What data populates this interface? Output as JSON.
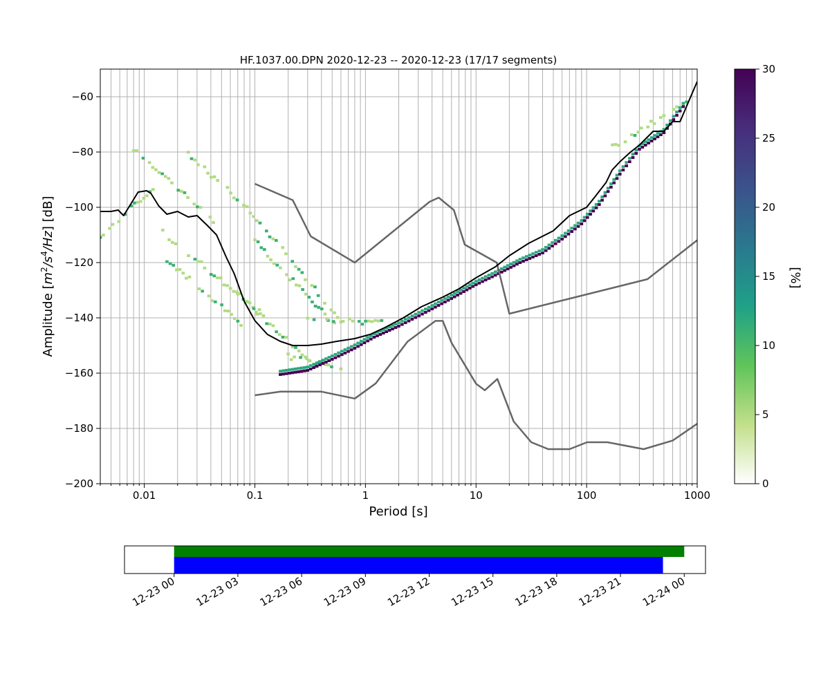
{
  "title": "HF.1037.00.DPN   2020-12-23 -- 2020-12-23  (17/17 segments)",
  "chart_data": [
    {
      "type": "heatmap",
      "title": "HF.1037.00.DPN   2020-12-23 -- 2020-12-23  (17/17 segments)",
      "xlabel": "Period [s]",
      "ylabel": "Amplitude [m²/s⁴/Hz] [dB]",
      "xscale": "log",
      "xlim": [
        0.004,
        1000
      ],
      "ylim": [
        -200,
        -50
      ],
      "grid": true,
      "xticks": [
        0.01,
        0.1,
        1,
        10,
        100,
        1000
      ],
      "xtick_labels": [
        "0.01",
        "0.1",
        "1",
        "10",
        "100",
        "1000"
      ],
      "yticks": [
        -200,
        -180,
        -160,
        -140,
        -120,
        -100,
        -80,
        -60
      ],
      "ytick_labels": [
        "−200",
        "−180",
        "−160",
        "−140",
        "−120",
        "−100",
        "−80",
        "−60"
      ],
      "colorbar": {
        "label": "[%]",
        "range": [
          0,
          30
        ],
        "ticks": [
          0,
          5,
          10,
          15,
          20,
          25,
          30
        ],
        "tick_labels": [
          "0",
          "5",
          "10",
          "15",
          "20",
          "25",
          "30"
        ],
        "colormap": "viridis_r",
        "colors": [
          "#ffffff",
          "#c2df8a",
          "#5fc45a",
          "#1fa187",
          "#2a788e",
          "#3b528b",
          "#472d7b",
          "#440154"
        ]
      },
      "mean_curve": {
        "color": "#000000",
        "x": [
          0.004,
          0.005,
          0.0058,
          0.0065,
          0.0075,
          0.0088,
          0.0105,
          0.0115,
          0.0135,
          0.016,
          0.02,
          0.025,
          0.03,
          0.037,
          0.045,
          0.055,
          0.065,
          0.08,
          0.1,
          0.13,
          0.17,
          0.22,
          0.3,
          0.4,
          0.55,
          0.8,
          1.1,
          1.5,
          2.2,
          3.2,
          5,
          7,
          10,
          15,
          20,
          30,
          50,
          70,
          100,
          120,
          150,
          170,
          200,
          250,
          300,
          400,
          500,
          600,
          700,
          1000
        ],
        "y": [
          -101.5,
          -101.5,
          -101,
          -103,
          -99,
          -94.5,
          -94,
          -95,
          -99.5,
          -102.5,
          -101.5,
          -103.5,
          -103,
          -106.5,
          -110,
          -118,
          -124,
          -134,
          -141,
          -146,
          -148.5,
          -150,
          -150,
          -149.5,
          -148.5,
          -147.5,
          -146,
          -143.5,
          -140,
          -136,
          -132.5,
          -129.5,
          -125.5,
          -121.5,
          -117.5,
          -113,
          -108.5,
          -103,
          -100,
          -96,
          -91,
          -86.5,
          -83.5,
          -80,
          -77.5,
          -72.5,
          -72.5,
          -69,
          -69,
          -54.5
        ]
      },
      "noise_model_high": {
        "color": "#666666",
        "x": [
          0.1,
          0.22,
          0.32,
          0.8,
          3.8,
          4.6,
          6.3,
          7.9,
          15.4,
          20,
          354.8,
          1000
        ],
        "y": [
          -91.5,
          -97.4,
          -110.5,
          -120,
          -98,
          -96.5,
          -101,
          -113.5,
          -120,
          -138.5,
          -126,
          -111.9
        ]
      },
      "noise_model_low": {
        "color": "#666666",
        "x": [
          0.1,
          0.17,
          0.4,
          0.8,
          1.24,
          2.4,
          4.3,
          5,
          6,
          10,
          12,
          15.6,
          21.9,
          31.6,
          45,
          70,
          101,
          154,
          328,
          600,
          1000
        ],
        "y": [
          -168,
          -166.7,
          -166.7,
          -169.2,
          -163.7,
          -148.6,
          -141.1,
          -141.1,
          -149,
          -163.8,
          -166.2,
          -162.1,
          -177.5,
          -185,
          -187.5,
          -187.5,
          -185,
          -185,
          -187.5,
          -184.4,
          -178.3
        ]
      },
      "density_rows": [
        {
          "x": [
            0.004,
            0.012
          ],
          "y": [
            -111,
            -93
          ],
          "pct": 5
        },
        {
          "x": [
            0.008,
            0.045
          ],
          "y": [
            -79,
            -106
          ],
          "pct": 5
        },
        {
          "x": [
            0.012,
            0.11
          ],
          "y": [
            -106,
            -138
          ],
          "pct": 5
        },
        {
          "x": [
            0.015,
            0.075
          ],
          "y": [
            -118,
            -142
          ],
          "pct": 5
        },
        {
          "x": [
            0.025,
            0.085
          ],
          "y": [
            -81,
            -100
          ],
          "pct": 5
        },
        {
          "x": [
            0.085,
            0.6
          ],
          "y": [
            -100,
            -141
          ],
          "pct": 5
        },
        {
          "x": [
            0.1,
            0.6
          ],
          "y": [
            -112,
            -145
          ],
          "pct": 5
        },
        {
          "x": [
            0.07,
            0.35
          ],
          "y": [
            -131,
            -158
          ],
          "pct": 5
        },
        {
          "x": [
            0.3,
            1.5
          ],
          "y": [
            -140,
            -142
          ],
          "pct": 5
        },
        {
          "x": [
            0.2,
            0.6
          ],
          "y": [
            -154,
            -158
          ],
          "pct": 5
        },
        {
          "x": [
            160,
            800
          ],
          "y": [
            -79,
            -62
          ],
          "pct": 5
        }
      ],
      "density_core": {
        "x": [
          0.17,
          0.3,
          0.5,
          0.8,
          1.2,
          2,
          3.5,
          6,
          10,
          16,
          25,
          40,
          60,
          90,
          130,
          200,
          300,
          500,
          800
        ],
        "y": [
          -160.5,
          -159,
          -155,
          -151,
          -147,
          -143,
          -138,
          -133,
          -128,
          -124,
          -120,
          -116.5,
          -111.5,
          -106,
          -99,
          -88,
          -79,
          -73,
          -62
        ],
        "pct": 30
      }
    },
    {
      "type": "bar",
      "title": "",
      "xlabel": "",
      "ylabel": "",
      "x_type": "time",
      "xlim": [
        "2020-12-22 21:40",
        "2020-12-24 01:00"
      ],
      "xticks": [
        "12-23 00",
        "12-23 03",
        "12-23 06",
        "12-23 09",
        "12-23 12",
        "12-23 15",
        "12-23 18",
        "12-23 21",
        "12-24 00"
      ],
      "bars": [
        {
          "start": "2020-12-23 00:00",
          "end": "2020-12-24 00:00",
          "color": "#008000"
        },
        {
          "start": "2020-12-23 00:00",
          "end": "2020-12-23 23:00",
          "color": "#0000ff"
        }
      ]
    }
  ]
}
